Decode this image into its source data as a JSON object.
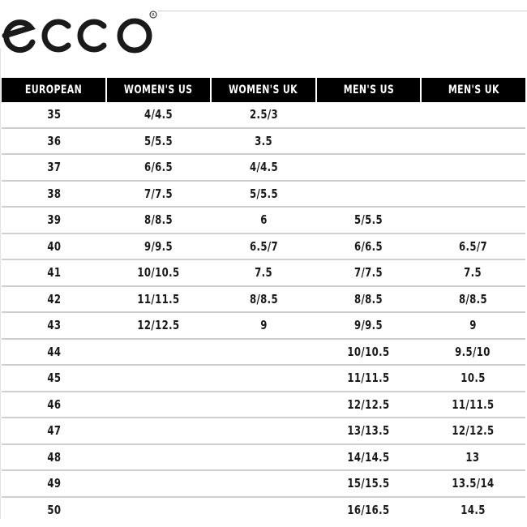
{
  "brand": {
    "logo_text": "ecco",
    "registered_mark": "®"
  },
  "headers": [
    "EUROPEAN",
    "WOMEN'S US",
    "WOMEN'S UK",
    "MEN'S US",
    "MEN'S UK"
  ],
  "rows": [
    [
      "35",
      "4/4.5",
      "2.5/3",
      "",
      ""
    ],
    [
      "36",
      "5/5.5",
      "3.5",
      "",
      ""
    ],
    [
      "37",
      "6/6.5",
      "4/4.5",
      "",
      ""
    ],
    [
      "38",
      "7/7.5",
      "5/5.5",
      "",
      ""
    ],
    [
      "39",
      "8/8.5",
      "6",
      "5/5.5",
      ""
    ],
    [
      "40",
      "9/9.5",
      "6.5/7",
      "6/6.5",
      "6.5/7"
    ],
    [
      "41",
      "10/10.5",
      "7.5",
      "7/7.5",
      "7.5"
    ],
    [
      "42",
      "11/11.5",
      "8/8.5",
      "8/8.5",
      "8/8.5"
    ],
    [
      "43",
      "12/12.5",
      "9",
      "9/9.5",
      "9"
    ],
    [
      "44",
      "",
      "",
      "10/10.5",
      "9.5/10"
    ],
    [
      "45",
      "",
      "",
      "11/11.5",
      "10.5"
    ],
    [
      "46",
      "",
      "",
      "12/12.5",
      "11/11.5"
    ],
    [
      "47",
      "",
      "",
      "13/13.5",
      "12/12.5"
    ],
    [
      "48",
      "",
      "",
      "14/14.5",
      "13"
    ],
    [
      "49",
      "",
      "",
      "15/15.5",
      "13.5/14"
    ],
    [
      "50",
      "",
      "",
      "16/16.5",
      "14.5"
    ]
  ]
}
